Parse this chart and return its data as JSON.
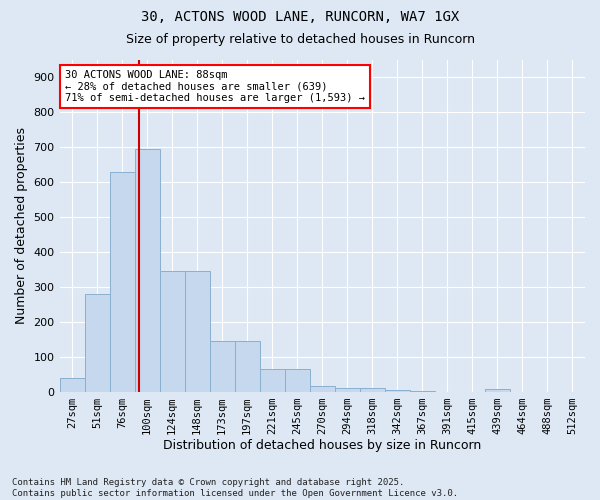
{
  "title_line1": "30, ACTONS WOOD LANE, RUNCORN, WA7 1GX",
  "title_line2": "Size of property relative to detached houses in Runcorn",
  "xlabel": "Distribution of detached houses by size in Runcorn",
  "ylabel": "Number of detached properties",
  "categories": [
    "27sqm",
    "51sqm",
    "76sqm",
    "100sqm",
    "124sqm",
    "148sqm",
    "173sqm",
    "197sqm",
    "221sqm",
    "245sqm",
    "270sqm",
    "294sqm",
    "318sqm",
    "342sqm",
    "367sqm",
    "391sqm",
    "415sqm",
    "439sqm",
    "464sqm",
    "488sqm",
    "512sqm"
  ],
  "values": [
    40,
    280,
    630,
    695,
    345,
    345,
    145,
    145,
    65,
    65,
    15,
    10,
    10,
    5,
    3,
    0,
    0,
    8,
    0,
    0,
    0
  ],
  "bar_color": "#c5d8ee",
  "bar_edge_color": "#8ab0d0",
  "background_color": "#dde8f4",
  "grid_color": "#ffffff",
  "vline_color": "#cc0000",
  "vline_x": 2.67,
  "annotation_text": "30 ACTONS WOOD LANE: 88sqm\n← 28% of detached houses are smaller (639)\n71% of semi-detached houses are larger (1,593) →",
  "footnote": "Contains HM Land Registry data © Crown copyright and database right 2025.\nContains public sector information licensed under the Open Government Licence v3.0.",
  "ylim": [
    0,
    950
  ],
  "yticks": [
    0,
    100,
    200,
    300,
    400,
    500,
    600,
    700,
    800,
    900
  ]
}
